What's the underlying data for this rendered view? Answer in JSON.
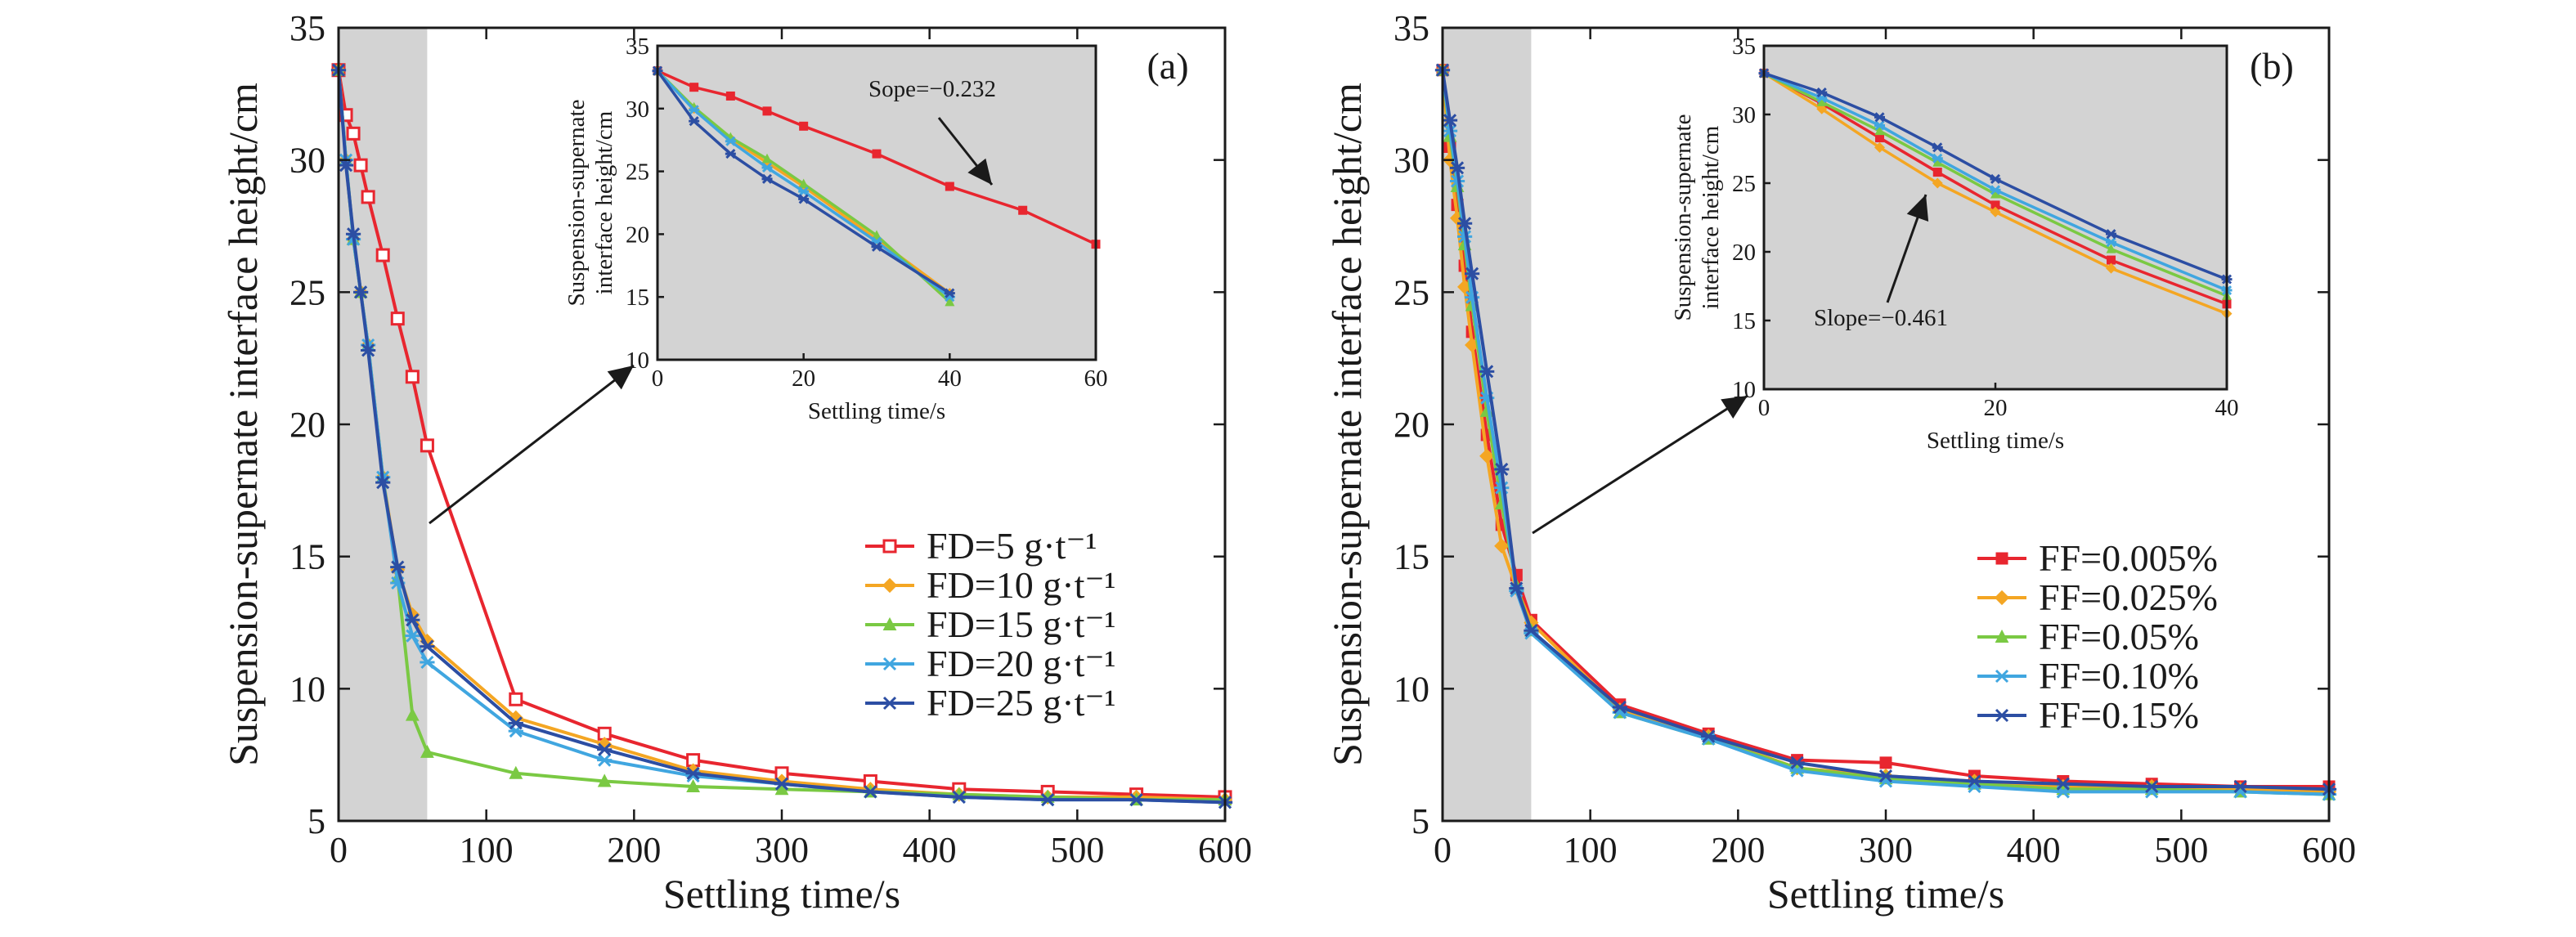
{
  "panels": [
    {
      "label": "(a)",
      "xlabel": "Settling time/s",
      "ylabel": "Suspension-supernate interface height/cm",
      "xlim": [
        0,
        600
      ],
      "ylim": [
        5,
        35
      ],
      "xticks": [
        0,
        100,
        200,
        300,
        400,
        500,
        600
      ],
      "yticks": [
        5,
        10,
        15,
        20,
        25,
        30,
        35
      ],
      "shaded_region": [
        0,
        60
      ],
      "legend_position": "lower-right",
      "series": [
        {
          "name": "FD=5 g·t⁻¹",
          "color": "#e8262f",
          "marker": "square-open",
          "x": [
            0,
            5,
            10,
            15,
            20,
            30,
            40,
            50,
            60,
            120,
            180,
            240,
            300,
            360,
            420,
            480,
            540,
            600
          ],
          "y": [
            33.4,
            31.7,
            31.0,
            29.8,
            28.6,
            26.4,
            24.0,
            21.8,
            19.2,
            9.6,
            8.3,
            7.3,
            6.8,
            6.5,
            6.2,
            6.1,
            6.0,
            5.9
          ]
        },
        {
          "name": "FD=10 g·t⁻¹",
          "color": "#f4a623",
          "marker": "diamond",
          "x": [
            0,
            5,
            10,
            15,
            20,
            30,
            40,
            50,
            60,
            120,
            180,
            240,
            300,
            360,
            420,
            480,
            540,
            600
          ],
          "y": [
            33.4,
            30.0,
            27.0,
            25.0,
            23.0,
            18.0,
            14.5,
            12.8,
            11.8,
            8.9,
            7.9,
            6.9,
            6.5,
            6.2,
            6.0,
            5.9,
            5.9,
            5.8
          ]
        },
        {
          "name": "FD=15 g·t⁻¹",
          "color": "#7ac943",
          "marker": "triangle",
          "x": [
            0,
            5,
            10,
            15,
            20,
            30,
            40,
            50,
            60,
            120,
            180,
            240,
            300,
            360,
            420,
            480,
            540,
            600
          ],
          "y": [
            33.4,
            30.0,
            27.0,
            25.0,
            23.0,
            18.0,
            14.2,
            9.0,
            7.6,
            6.8,
            6.5,
            6.3,
            6.2,
            6.1,
            6.0,
            5.9,
            5.8,
            5.8
          ]
        },
        {
          "name": "FD=20 g·t⁻¹",
          "color": "#40a6e0",
          "marker": "star",
          "x": [
            0,
            5,
            10,
            15,
            20,
            30,
            40,
            50,
            60,
            120,
            180,
            240,
            300,
            360,
            420,
            480,
            540,
            600
          ],
          "y": [
            33.4,
            30.0,
            27.0,
            25.0,
            23.0,
            18.0,
            14.0,
            12.0,
            11.0,
            8.4,
            7.3,
            6.7,
            6.4,
            6.1,
            5.9,
            5.8,
            5.8,
            5.7
          ]
        },
        {
          "name": "FD=25 g·t⁻¹",
          "color": "#2c4ea3",
          "marker": "star",
          "x": [
            0,
            5,
            10,
            15,
            20,
            30,
            40,
            50,
            60,
            120,
            180,
            240,
            300,
            360,
            420,
            480,
            540,
            600
          ],
          "y": [
            33.4,
            29.8,
            27.2,
            25.0,
            22.8,
            17.8,
            14.6,
            12.6,
            11.6,
            8.7,
            7.7,
            6.8,
            6.4,
            6.1,
            5.9,
            5.8,
            5.8,
            5.7
          ]
        }
      ],
      "inset": {
        "xlabel": "Settling time/s",
        "ylabel_lines": [
          "Suspension-supernate",
          "interface height/cm"
        ],
        "xlim": [
          0,
          60
        ],
        "ylim": [
          10,
          35
        ],
        "xticks": [
          0,
          20,
          40,
          60
        ],
        "yticks": [
          10,
          15,
          20,
          25,
          30,
          35
        ],
        "annotation": "Sope=−0.232",
        "series": [
          {
            "color": "#e8262f",
            "marker": "square",
            "x": [
              0,
              5,
              10,
              15,
              20,
              30,
              40,
              50,
              60
            ],
            "y": [
              33.0,
              31.7,
              31.0,
              29.8,
              28.6,
              26.4,
              23.8,
              21.9,
              19.2
            ]
          },
          {
            "color": "#f4a623",
            "marker": "diamond",
            "x": [
              0,
              5,
              10,
              15,
              20,
              30,
              40
            ],
            "y": [
              33.0,
              30.0,
              27.6,
              25.7,
              23.8,
              19.6,
              15.3
            ]
          },
          {
            "color": "#7ac943",
            "marker": "triangle",
            "x": [
              0,
              5,
              10,
              15,
              20,
              30,
              40
            ],
            "y": [
              33.0,
              30.1,
              27.7,
              26.0,
              24.0,
              19.9,
              14.6
            ]
          },
          {
            "color": "#40a6e0",
            "marker": "star",
            "x": [
              0,
              5,
              10,
              15,
              20,
              30,
              40
            ],
            "y": [
              33.0,
              29.9,
              27.4,
              25.3,
              23.4,
              19.4,
              15.0
            ]
          },
          {
            "color": "#2c4ea3",
            "marker": "star",
            "x": [
              0,
              5,
              10,
              15,
              20,
              30,
              40
            ],
            "y": [
              33.0,
              29.0,
              26.4,
              24.4,
              22.8,
              19.0,
              15.3
            ]
          }
        ]
      }
    },
    {
      "label": "(b)",
      "xlabel": "Settling time/s",
      "ylabel": "Suspension-supernate interface height/cm",
      "xlim": [
        0,
        600
      ],
      "ylim": [
        5,
        35
      ],
      "xticks": [
        0,
        100,
        200,
        300,
        400,
        500,
        600
      ],
      "yticks": [
        5,
        10,
        15,
        20,
        25,
        30,
        35
      ],
      "shaded_region": [
        0,
        60
      ],
      "legend_position": "lower-right",
      "series": [
        {
          "name": "FF=0.005%",
          "color": "#e8262f",
          "marker": "square",
          "x": [
            0,
            5,
            10,
            15,
            20,
            30,
            40,
            50,
            60,
            120,
            180,
            240,
            300,
            360,
            420,
            480,
            540,
            600
          ],
          "y": [
            33.4,
            30.5,
            28.3,
            26.0,
            23.5,
            19.6,
            16.2,
            14.3,
            12.6,
            9.4,
            8.3,
            7.3,
            7.2,
            6.7,
            6.5,
            6.4,
            6.3,
            6.3
          ]
        },
        {
          "name": "FF=0.025%",
          "color": "#f4a623",
          "marker": "diamond",
          "x": [
            0,
            5,
            10,
            15,
            20,
            30,
            40,
            50,
            60,
            120,
            180,
            240,
            300,
            360,
            420,
            480,
            540,
            600
          ],
          "y": [
            33.4,
            30.0,
            27.8,
            25.2,
            23.0,
            18.8,
            15.4,
            13.8,
            12.5,
            9.2,
            8.2,
            7.0,
            6.7,
            6.5,
            6.3,
            6.3,
            6.2,
            6.1
          ]
        },
        {
          "name": "FF=0.05%",
          "color": "#7ac943",
          "marker": "triangle",
          "x": [
            0,
            5,
            10,
            15,
            20,
            30,
            40,
            50,
            60,
            120,
            180,
            240,
            300,
            360,
            420,
            480,
            540,
            600
          ],
          "y": [
            33.4,
            30.9,
            29.0,
            26.8,
            24.5,
            20.5,
            17.0,
            13.9,
            12.2,
            9.1,
            8.1,
            7.0,
            6.6,
            6.4,
            6.2,
            6.2,
            6.1,
            6.0
          ]
        },
        {
          "name": "FF=0.10%",
          "color": "#40a6e0",
          "marker": "star",
          "x": [
            0,
            5,
            10,
            15,
            20,
            30,
            40,
            50,
            60,
            120,
            180,
            240,
            300,
            360,
            420,
            480,
            540,
            600
          ],
          "y": [
            33.4,
            31.1,
            29.2,
            27.1,
            24.8,
            21.0,
            17.6,
            13.7,
            12.1,
            9.1,
            8.1,
            6.9,
            6.5,
            6.3,
            6.1,
            6.1,
            6.1,
            6.0
          ]
        },
        {
          "name": "FF=0.15%",
          "color": "#2c4ea3",
          "marker": "star",
          "x": [
            0,
            5,
            10,
            15,
            20,
            30,
            40,
            50,
            60,
            120,
            180,
            240,
            300,
            360,
            420,
            480,
            540,
            600
          ],
          "y": [
            33.4,
            31.5,
            29.7,
            27.6,
            25.7,
            22.0,
            18.3,
            13.8,
            12.2,
            9.3,
            8.2,
            7.2,
            6.7,
            6.5,
            6.4,
            6.3,
            6.3,
            6.2
          ]
        }
      ],
      "inset": {
        "xlabel": "Settling time/s",
        "ylabel_lines": [
          "Suspension-supernate",
          "interface height/cm"
        ],
        "xlim": [
          0,
          40
        ],
        "ylim": [
          10,
          35
        ],
        "xticks": [
          0,
          20,
          40
        ],
        "yticks": [
          10,
          15,
          20,
          25,
          30,
          35
        ],
        "annotation": "Slope=−0.461",
        "series": [
          {
            "color": "#e8262f",
            "marker": "square",
            "x": [
              0,
              5,
              10,
              15,
              20,
              30,
              40
            ],
            "y": [
              33.0,
              30.8,
              28.3,
              25.8,
              23.4,
              19.4,
              16.2
            ]
          },
          {
            "color": "#f4a623",
            "marker": "diamond",
            "x": [
              0,
              5,
              10,
              15,
              20,
              30,
              40
            ],
            "y": [
              33.0,
              30.4,
              27.6,
              25.0,
              22.9,
              18.8,
              15.5
            ]
          },
          {
            "color": "#7ac943",
            "marker": "triangle",
            "x": [
              0,
              5,
              10,
              15,
              20,
              30,
              40
            ],
            "y": [
              33.0,
              30.9,
              28.8,
              26.5,
              24.2,
              20.2,
              16.8
            ]
          },
          {
            "color": "#40a6e0",
            "marker": "star",
            "x": [
              0,
              5,
              10,
              15,
              20,
              30,
              40
            ],
            "y": [
              33.0,
              31.2,
              29.2,
              26.8,
              24.5,
              20.7,
              17.2
            ]
          },
          {
            "color": "#2c4ea3",
            "marker": "star",
            "x": [
              0,
              5,
              10,
              15,
              20,
              30,
              40
            ],
            "y": [
              33.0,
              31.6,
              29.8,
              27.6,
              25.3,
              21.3,
              18.0
            ]
          }
        ]
      }
    }
  ],
  "chart_data": [
    {
      "type": "line",
      "title": "",
      "xlabel": "Settling time/s",
      "ylabel": "Suspension-supernate interface height/cm",
      "xlim": [
        0,
        600
      ],
      "ylim": [
        5,
        35
      ],
      "legend": [
        "FD=5 g·t⁻¹",
        "FD=10 g·t⁻¹",
        "FD=15 g·t⁻¹",
        "FD=20 g·t⁻¹",
        "FD=25 g·t⁻¹"
      ]
    },
    {
      "type": "line",
      "title": "",
      "xlabel": "Settling time/s",
      "ylabel": "Suspension-supernate interface height/cm",
      "xlim": [
        0,
        600
      ],
      "ylim": [
        5,
        35
      ],
      "legend": [
        "FF=0.005%",
        "FF=0.025%",
        "FF=0.05%",
        "FF=0.10%",
        "FF=0.15%"
      ]
    }
  ]
}
